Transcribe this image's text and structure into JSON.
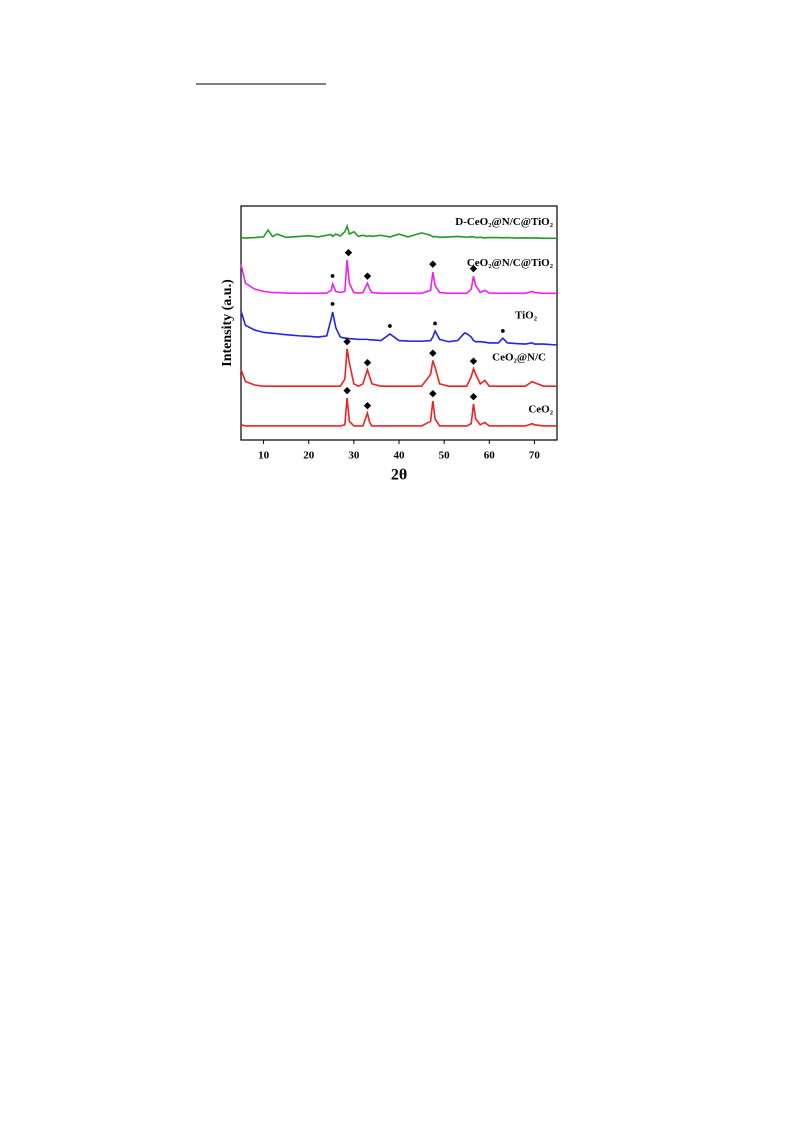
{
  "chart_data": {
    "type": "line",
    "x_label": "2θ",
    "y_label": "Intensity (a.u.)",
    "xlim": [
      5,
      75
    ],
    "xticks": [
      10,
      20,
      30,
      40,
      50,
      60,
      70
    ],
    "ylim": [
      0,
      100
    ],
    "x": [
      5,
      6,
      8,
      10,
      11,
      12,
      13,
      15,
      18,
      20,
      22,
      24,
      25,
      25.3,
      26,
      27,
      28,
      28.5,
      29,
      30,
      31,
      32,
      33,
      33.5,
      34,
      36,
      38,
      40,
      42,
      45,
      47,
      47.5,
      48,
      49,
      51,
      53,
      54.5,
      55,
      56,
      56.5,
      57,
      58,
      59,
      60,
      62,
      63,
      64,
      66,
      68,
      69.5,
      70,
      72,
      75
    ],
    "series": [
      {
        "name": "CeO₂",
        "color": "#ee2222",
        "values": [
          6.5,
          6,
          6,
          6,
          6,
          6,
          6,
          6,
          6,
          6,
          6,
          6,
          6,
          6,
          6,
          6,
          6.5,
          18,
          8,
          6,
          6,
          6,
          11.5,
          7.5,
          6,
          6,
          6,
          6,
          6,
          6,
          8,
          16.7,
          9,
          6,
          6,
          6,
          6,
          6,
          7,
          15.4,
          9,
          6.5,
          7.5,
          6,
          6,
          6,
          6,
          6,
          6,
          7,
          6.5,
          6,
          6
        ]
      },
      {
        "name": "CeO₂@N/C",
        "color": "#ee2222",
        "values": [
          30,
          25,
          23.5,
          23,
          23,
          23,
          23,
          23,
          23,
          23,
          23,
          23,
          23,
          23,
          23,
          23,
          26,
          39,
          33,
          24,
          23,
          24,
          30,
          27,
          24,
          23,
          23,
          23,
          23,
          23,
          28,
          34,
          31,
          24,
          23,
          23,
          23,
          23,
          27,
          30.5,
          28,
          24,
          25.5,
          23,
          23,
          23,
          23,
          23,
          23,
          25,
          24.5,
          23,
          23
        ]
      },
      {
        "name": "TiO₂",
        "color": "#2222ee",
        "values": [
          55,
          49,
          47,
          46,
          45.8,
          45.6,
          45.4,
          45,
          44.5,
          44.3,
          44,
          44.5,
          52,
          54.7,
          48,
          44,
          43.5,
          43.5,
          43.3,
          43.2,
          43,
          43,
          43,
          42.8,
          42.8,
          42.5,
          45.3,
          42.5,
          42.3,
          42.2,
          42.5,
          44,
          46.6,
          43,
          42,
          42.5,
          45.7,
          45.5,
          44,
          42.5,
          42,
          42,
          41.8,
          41.5,
          41.5,
          43.5,
          41.5,
          41.2,
          41,
          41.5,
          41,
          41,
          40.6
        ]
      },
      {
        "name": "CeO₂@N/C@TiO₂",
        "color": "#ee22ee",
        "values": [
          75,
          67,
          64.5,
          63.5,
          63.3,
          63,
          63,
          62.8,
          62.7,
          62.7,
          62.7,
          62.8,
          64,
          66.7,
          63.5,
          63,
          63.5,
          77,
          67,
          63,
          62.8,
          63,
          67,
          64.5,
          63,
          62.7,
          62.7,
          62.7,
          62.7,
          62.7,
          64,
          71.8,
          66,
          63,
          62.7,
          62.7,
          62.7,
          62.7,
          64.5,
          70,
          66,
          63,
          64,
          62.8,
          62.7,
          62.7,
          62.7,
          62.7,
          62.7,
          63.5,
          63,
          62.7,
          62.7
        ]
      },
      {
        "name": "D-CeO₂@N/C@TiO₂",
        "color": "#229922",
        "values": [
          86.5,
          86.3,
          86.5,
          86.8,
          89.7,
          87,
          88,
          86.6,
          87,
          87.3,
          86.8,
          87.5,
          87.8,
          87,
          88,
          87.2,
          89,
          91.4,
          88,
          89,
          87,
          87.5,
          87,
          87.3,
          87,
          87.5,
          86.8,
          88,
          86.8,
          88.5,
          87.5,
          86.8,
          87,
          86.6,
          86.8,
          87,
          86.8,
          86.6,
          86.9,
          86.8,
          86.5,
          86.6,
          86.4,
          86.5,
          86.5,
          86.4,
          86.5,
          86.3,
          86.4,
          86.3,
          86.4,
          86.2,
          86.2
        ]
      }
    ],
    "annotations": [
      {
        "text": "◆",
        "x": 28.5,
        "y": 21
      },
      {
        "text": "◆",
        "x": 33,
        "y": 14.5
      },
      {
        "text": "◆",
        "x": 47.5,
        "y": 19.7
      },
      {
        "text": "◆",
        "x": 56.5,
        "y": 18.4
      },
      {
        "text": "◆",
        "x": 28.5,
        "y": 42
      },
      {
        "text": "◆",
        "x": 33,
        "y": 33
      },
      {
        "text": "◆",
        "x": 47.5,
        "y": 37
      },
      {
        "text": "◆",
        "x": 56.5,
        "y": 33.5
      },
      {
        "text": "●",
        "x": 25.3,
        "y": 58
      },
      {
        "text": "●",
        "x": 38,
        "y": 48.5
      },
      {
        "text": "●",
        "x": 48,
        "y": 49.5
      },
      {
        "text": "●",
        "x": 63,
        "y": 46.5
      },
      {
        "text": "●",
        "x": 25.3,
        "y": 70
      },
      {
        "text": "◆",
        "x": 28.8,
        "y": 80
      },
      {
        "text": "◆",
        "x": 33,
        "y": 70
      },
      {
        "text": "◆",
        "x": 47.5,
        "y": 75
      },
      {
        "text": "◆",
        "x": 56.5,
        "y": 73
      }
    ]
  }
}
